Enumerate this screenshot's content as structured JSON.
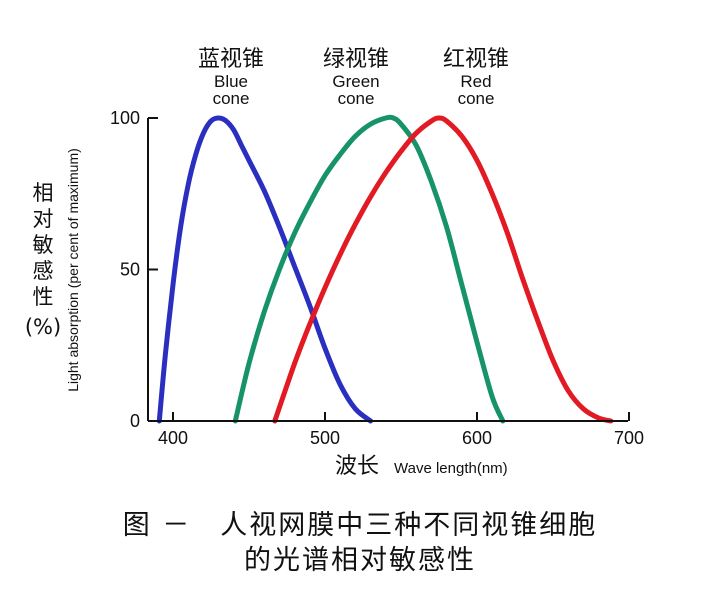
{
  "chart_data": {
    "type": "line",
    "x_unit": "nm",
    "xlim": [
      390,
      700
    ],
    "ylim": [
      0,
      100
    ],
    "x_ticks": [
      400,
      500,
      600,
      700
    ],
    "y_ticks": [
      0,
      50,
      100
    ],
    "grid": false,
    "xlabel_cn": "波长",
    "xlabel_en": "Wave length(nm)",
    "ylabel_cn": [
      "相",
      "对",
      "敏",
      "感",
      "性",
      "(%)"
    ],
    "ylabel_en": "Light absorption (per cent of maximum)",
    "series": [
      {
        "name_cn": "蓝视锥",
        "name_en_1": "Blue",
        "name_en_2": "cone",
        "color": "#2b2fc0",
        "x": [
          391,
          395,
          400,
          405,
          410,
          415,
          420,
          425,
          430,
          435,
          440,
          445,
          450,
          460,
          470,
          480,
          490,
          500,
          510,
          520,
          530
        ],
        "y": [
          0,
          22,
          45,
          64,
          78,
          88,
          95,
          99,
          100,
          99,
          96,
          91,
          86,
          76,
          64,
          51,
          38,
          24,
          12,
          4,
          0
        ]
      },
      {
        "name_cn": "绿视锥",
        "name_en_1": "Green",
        "name_en_2": "cone",
        "color": "#17936a",
        "x": [
          441,
          450,
          460,
          470,
          480,
          490,
          500,
          510,
          520,
          530,
          540,
          545,
          550,
          560,
          570,
          580,
          590,
          600,
          610,
          617
        ],
        "y": [
          0,
          19,
          36,
          50,
          62,
          72,
          81,
          88,
          94,
          98,
          100,
          100,
          98,
          91,
          79,
          64,
          45,
          26,
          8,
          0
        ]
      },
      {
        "name_cn": "红视锥",
        "name_en_1": "Red",
        "name_en_2": "cone",
        "color": "#e21a24",
        "x": [
          467,
          480,
          490,
          500,
          510,
          520,
          530,
          540,
          550,
          560,
          570,
          575,
          580,
          590,
          600,
          610,
          620,
          630,
          640,
          650,
          660,
          670,
          680,
          688
        ],
        "y": [
          0,
          19,
          32,
          44,
          55,
          65,
          74,
          82,
          89,
          95,
          99,
          100,
          99,
          94,
          86,
          75,
          62,
          47,
          33,
          20,
          10,
          4,
          1,
          0
        ]
      }
    ]
  },
  "caption": {
    "line1": "图 －　人视网膜中三种不同视锥细胞",
    "line2": "的光谱相对敏感性"
  }
}
